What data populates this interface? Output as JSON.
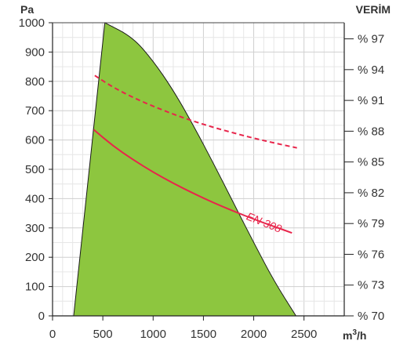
{
  "chart_data": {
    "type": "area",
    "y_unit": "Pa",
    "y2_unit": "VERİM",
    "x_unit": "m³/h",
    "x_unit_base": "m",
    "x_unit_exp": "3",
    "x_unit_suffix": "/h",
    "xlim": [
      0,
      2900
    ],
    "ylim": [
      0,
      1000
    ],
    "x_ticks": [
      0,
      500,
      1000,
      1500,
      2000,
      2500
    ],
    "x_tick_labels": [
      "0",
      "500",
      "1000",
      "1500",
      "2000",
      "2500"
    ],
    "y_ticks": [
      0,
      100,
      200,
      300,
      400,
      500,
      600,
      700,
      800,
      900,
      1000
    ],
    "y_tick_labels": [
      "0",
      "100",
      "200",
      "300",
      "400",
      "500",
      "600",
      "700",
      "800",
      "900",
      "1000"
    ],
    "y2_ticks": [
      0,
      105,
      210,
      315,
      420,
      525,
      630,
      735,
      840,
      945
    ],
    "y2_tick_labels": [
      "% 70",
      "% 73",
      "% 76",
      "% 79",
      "% 82",
      "% 85",
      "% 88",
      "% 91",
      "% 94",
      "% 97"
    ],
    "grid": true,
    "operating_area": {
      "color": "#8dc63f",
      "left_edge": [
        [
          210,
          0
        ],
        [
          520,
          1000
        ]
      ],
      "right_edge": [
        [
          520,
          1000
        ],
        [
          800,
          950
        ],
        [
          1000,
          870
        ],
        [
          1200,
          770
        ],
        [
          1400,
          650
        ],
        [
          1600,
          520
        ],
        [
          1800,
          385
        ],
        [
          2000,
          250
        ],
        [
          2200,
          120
        ],
        [
          2420,
          0
        ]
      ]
    },
    "series": [
      {
        "style": "dashed",
        "color": "#e8254b",
        "x": [
          420,
          600,
          800,
          1000,
          1200,
          1400,
          1600,
          1800,
          2000,
          2200,
          2430
        ],
        "y": [
          820,
          780,
          745,
          715,
          688,
          664,
          643,
          624,
          606,
          590,
          573
        ]
      },
      {
        "name": "EN 308",
        "style": "solid",
        "color": "#e8254b",
        "x": [
          410,
          600,
          800,
          1000,
          1200,
          1400,
          1600,
          1800,
          2000,
          2200,
          2380
        ],
        "y": [
          635,
          580,
          533,
          490,
          452,
          418,
          386,
          357,
          330,
          305,
          283
        ]
      }
    ],
    "annotations": [
      {
        "text": "EN 308",
        "x": 1920,
        "y": 330,
        "color": "#e8254b"
      }
    ]
  }
}
